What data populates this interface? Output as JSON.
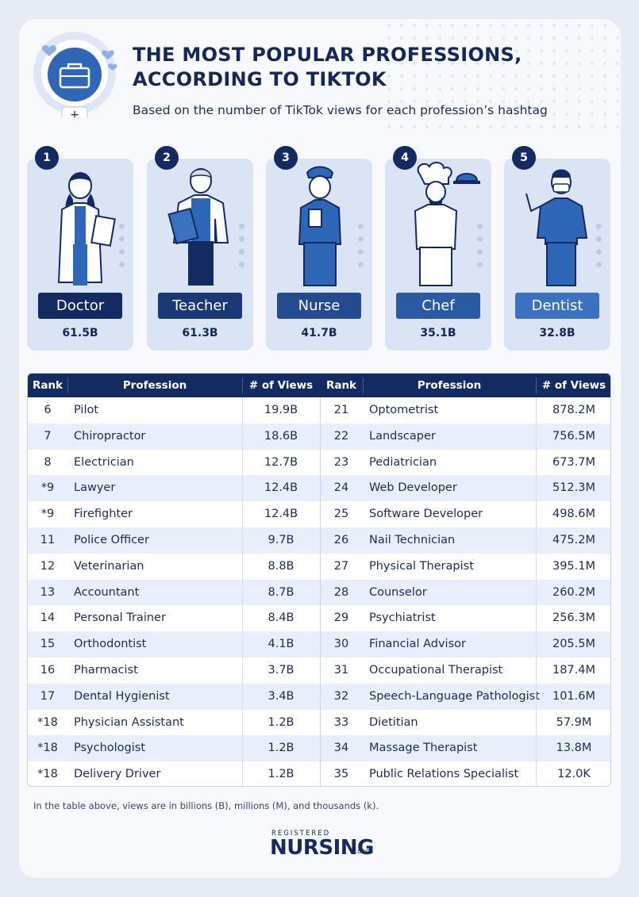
{
  "header": {
    "title_line1": "THE MOST POPULAR PROFESSIONS,",
    "title_line2": "ACCORDING TO TIKTOK",
    "subtitle": "Based on the number of TikTok views for each profession’s hashtag",
    "plus_symbol": "+"
  },
  "top_five": [
    {
      "rank": "1",
      "name": "Doctor",
      "views": "61.5B",
      "color": "#142a63"
    },
    {
      "rank": "2",
      "name": "Teacher",
      "views": "61.3B",
      "color": "#1b3877"
    },
    {
      "rank": "3",
      "name": "Nurse",
      "views": "41.7B",
      "color": "#244a8f"
    },
    {
      "rank": "4",
      "name": "Chef",
      "views": "35.1B",
      "color": "#2b5aa5"
    },
    {
      "rank": "5",
      "name": "Dentist",
      "views": "32.8B",
      "color": "#3a71c0"
    }
  ],
  "table": {
    "headers": {
      "rank": "Rank",
      "profession": "Profession",
      "views": "# of Views"
    },
    "left": [
      {
        "rank": "6",
        "profession": "Pilot",
        "views": "19.9B"
      },
      {
        "rank": "7",
        "profession": "Chiropractor",
        "views": "18.6B"
      },
      {
        "rank": "8",
        "profession": "Electrician",
        "views": "12.7B"
      },
      {
        "rank": "*9",
        "profession": "Lawyer",
        "views": "12.4B"
      },
      {
        "rank": "*9",
        "profession": "Firefighter",
        "views": "12.4B"
      },
      {
        "rank": "11",
        "profession": "Police Officer",
        "views": "9.7B"
      },
      {
        "rank": "12",
        "profession": "Veterinarian",
        "views": "8.8B"
      },
      {
        "rank": "13",
        "profession": "Accountant",
        "views": "8.7B"
      },
      {
        "rank": "14",
        "profession": "Personal Trainer",
        "views": "8.4B"
      },
      {
        "rank": "15",
        "profession": "Orthodontist",
        "views": "4.1B"
      },
      {
        "rank": "16",
        "profession": "Pharmacist",
        "views": "3.7B"
      },
      {
        "rank": "17",
        "profession": "Dental Hygienist",
        "views": "3.4B"
      },
      {
        "rank": "*18",
        "profession": "Physician Assistant",
        "views": "1.2B"
      },
      {
        "rank": "*18",
        "profession": "Psychologist",
        "views": "1.2B"
      },
      {
        "rank": "*18",
        "profession": "Delivery Driver",
        "views": "1.2B"
      }
    ],
    "right": [
      {
        "rank": "21",
        "profession": "Optometrist",
        "views": "878.2M"
      },
      {
        "rank": "22",
        "profession": "Landscaper",
        "views": "756.5M"
      },
      {
        "rank": "23",
        "profession": "Pediatrician",
        "views": "673.7M"
      },
      {
        "rank": "24",
        "profession": "Web Developer",
        "views": "512.3M"
      },
      {
        "rank": "25",
        "profession": "Software Developer",
        "views": "498.6M"
      },
      {
        "rank": "26",
        "profession": "Nail Technician",
        "views": "475.2M"
      },
      {
        "rank": "27",
        "profession": "Physical Therapist",
        "views": "395.1M"
      },
      {
        "rank": "28",
        "profession": "Counselor",
        "views": "260.2M"
      },
      {
        "rank": "29",
        "profession": "Psychiatrist",
        "views": "256.3M"
      },
      {
        "rank": "30",
        "profession": "Financial Advisor",
        "views": "205.5M"
      },
      {
        "rank": "31",
        "profession": "Occupational Therapist",
        "views": "187.4M"
      },
      {
        "rank": "32",
        "profession": "Speech-Language Pathologist",
        "views": "101.6M"
      },
      {
        "rank": "33",
        "profession": "Dietitian",
        "views": "57.9M"
      },
      {
        "rank": "34",
        "profession": "Massage Therapist",
        "views": "13.8M"
      },
      {
        "rank": "35",
        "profession": "Public Relations Specialist",
        "views": "12.0K"
      }
    ]
  },
  "footnote": "In the table above, views are in billions (B), millions (M), and thousands (k).",
  "logo": {
    "top": "REGISTERED",
    "main": "NURSING",
    "suffix": ".ORG"
  },
  "colors": {
    "navy": "#142a63",
    "card_bg": "#dbe4f5",
    "row_alt": "#e8eefa"
  }
}
